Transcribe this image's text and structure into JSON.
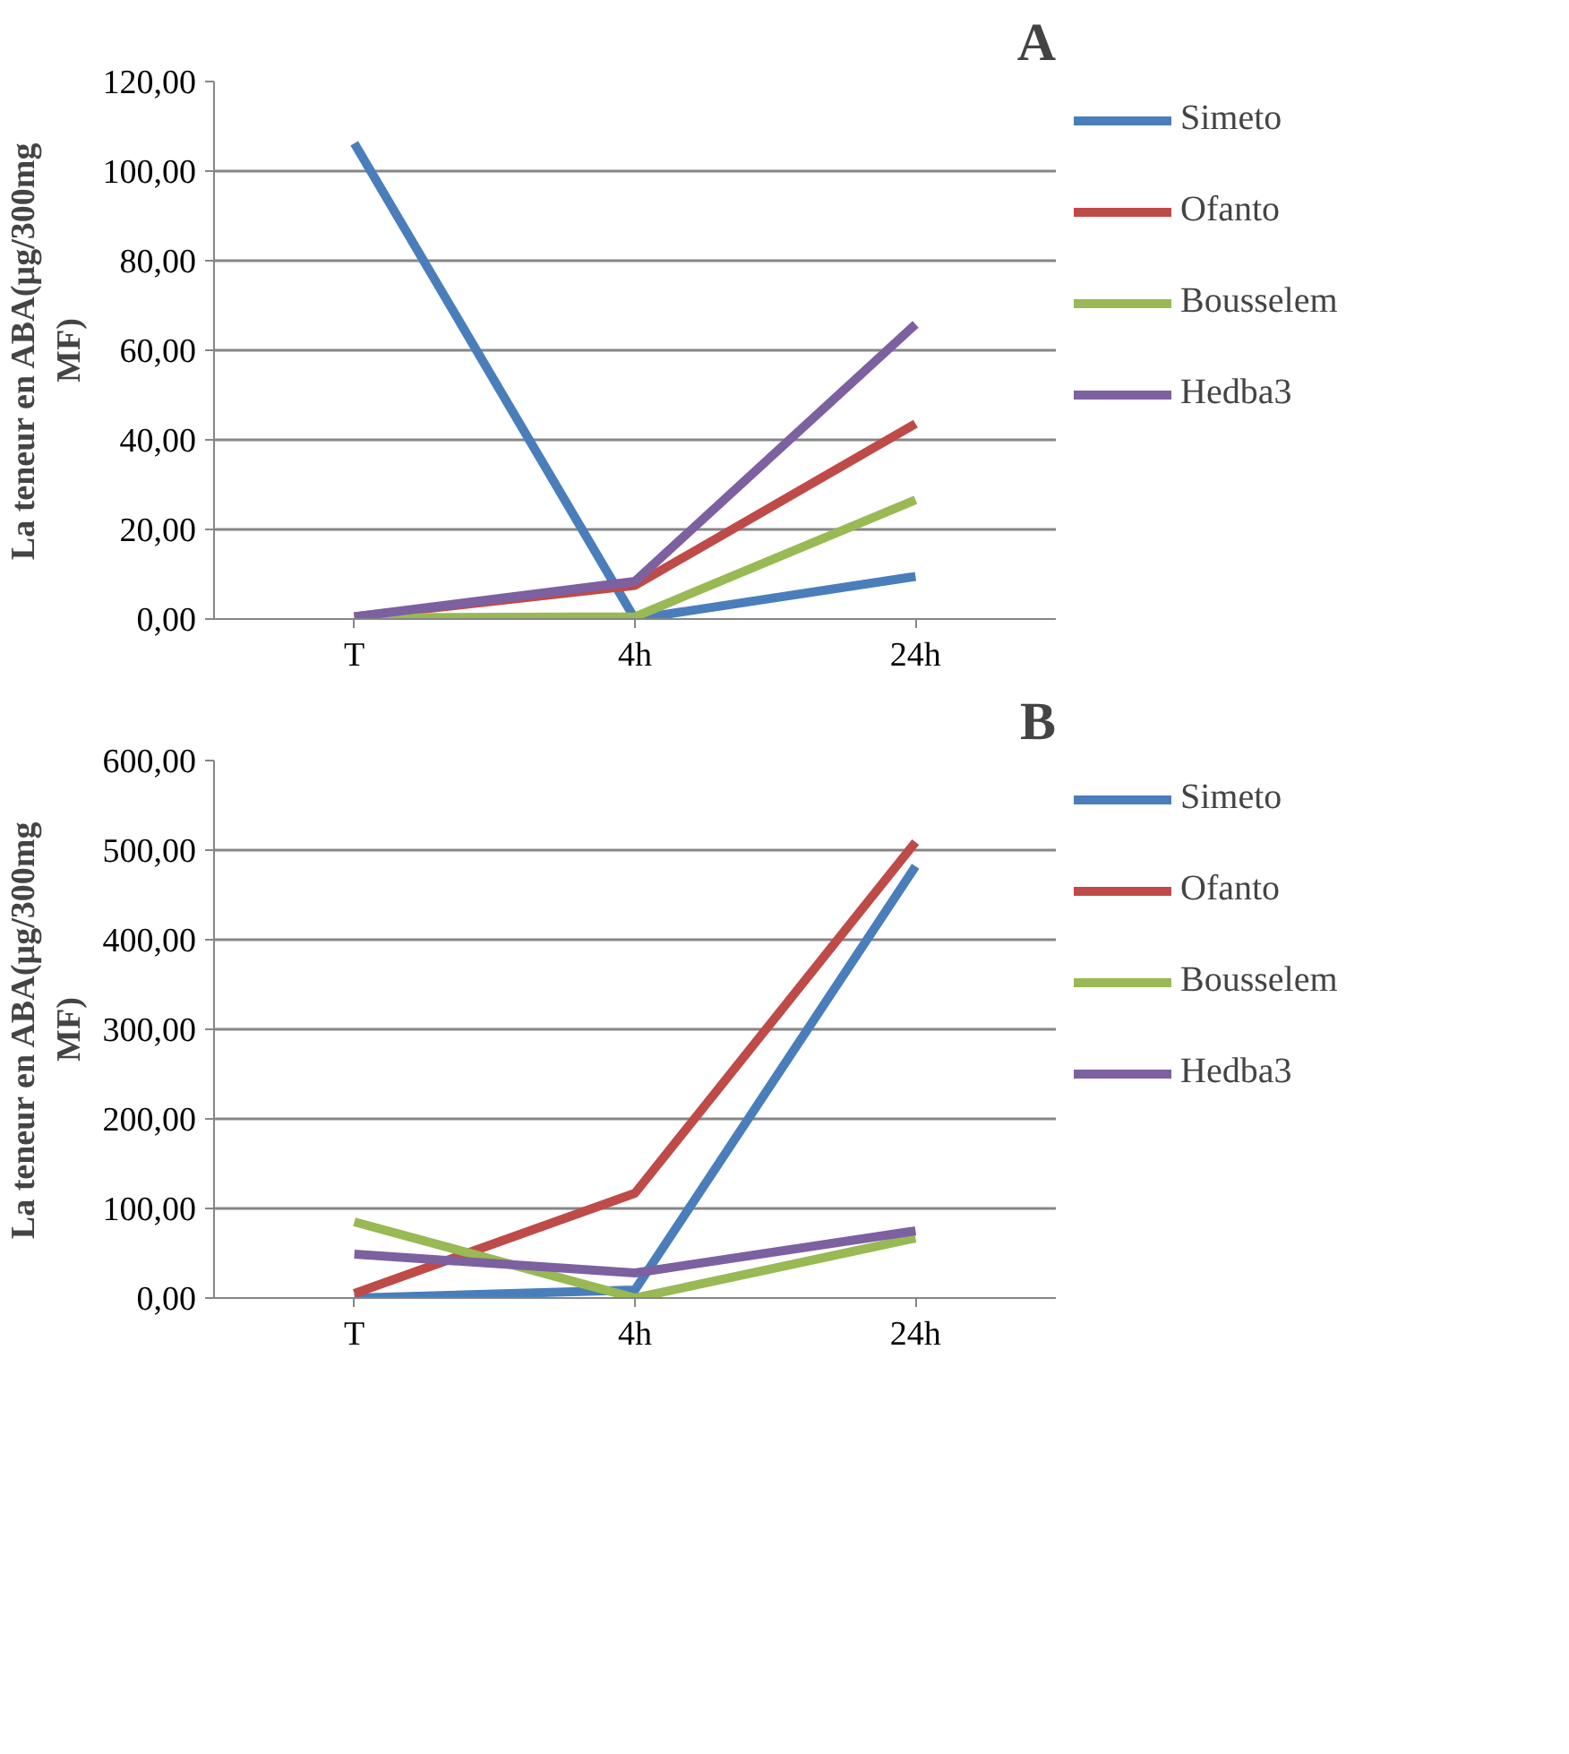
{
  "chart_data": [
    {
      "type": "line",
      "title": "A",
      "ylabel": "La teneur en ABA(µg/300mg MF)",
      "categories": [
        "T",
        "4h",
        "24h"
      ],
      "series": [
        {
          "name": "Simeto",
          "color": "#4a7ebb",
          "values": [
            106.2,
            0,
            9.5
          ]
        },
        {
          "name": "Ofanto",
          "color": "#be4b48",
          "values": [
            0.5,
            7.5,
            43.6
          ]
        },
        {
          "name": "Bousselem",
          "color": "#98b954",
          "values": [
            0.3,
            0.5,
            26.6
          ]
        },
        {
          "name": "Hedba3",
          "color": "#7d60a0",
          "values": [
            0.5,
            8.4,
            65.8
          ]
        }
      ],
      "ylim": [
        0,
        120
      ],
      "yticks": [
        {
          "value": 0,
          "label": "0,00"
        },
        {
          "value": 20,
          "label": "20,00"
        },
        {
          "value": 40,
          "label": "40,00"
        },
        {
          "value": 60,
          "label": "60,00"
        },
        {
          "value": 80,
          "label": "80,00"
        },
        {
          "value": 100,
          "label": "100,00"
        },
        {
          "value": 120,
          "label": "120,00"
        }
      ],
      "grid": "y",
      "legend": "right",
      "marker": "none",
      "line_style": "solid"
    },
    {
      "type": "line",
      "title": "B",
      "ylabel": "La teneur en ABA(µg/300mg MF)",
      "categories": [
        "T",
        "4h",
        "24h"
      ],
      "series": [
        {
          "name": "Simeto",
          "color": "#4a7ebb",
          "values": [
            0,
            9,
            482
          ]
        },
        {
          "name": "Ofanto",
          "color": "#be4b48",
          "values": [
            5,
            117,
            509
          ]
        },
        {
          "name": "Bousselem",
          "color": "#98b954",
          "values": [
            85,
            0,
            67
          ]
        },
        {
          "name": "Hedba3",
          "color": "#7d60a0",
          "values": [
            49,
            28,
            75
          ]
        }
      ],
      "ylim": [
        0,
        600
      ],
      "yticks": [
        {
          "value": 0,
          "label": "0,00"
        },
        {
          "value": 100,
          "label": "100,00"
        },
        {
          "value": 200,
          "label": "200,00"
        },
        {
          "value": 300,
          "label": "300,00"
        },
        {
          "value": 400,
          "label": "400,00"
        },
        {
          "value": 500,
          "label": "500,00"
        },
        {
          "value": 600,
          "label": "600,00"
        }
      ],
      "grid": "y",
      "legend": "right",
      "marker": "none",
      "line_style": "solid"
    }
  ]
}
